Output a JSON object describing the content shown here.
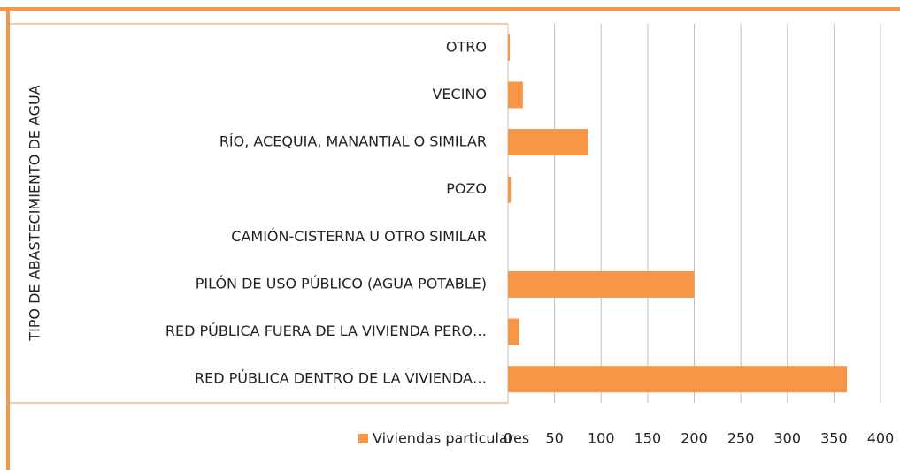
{
  "chart_data": {
    "type": "barh",
    "y_label": "TIPO DE ABASTECIMIENTO DE AGUA",
    "categories": [
      "OTRO",
      "VECINO",
      "RÍO, ACEQUIA, MANANTIAL O SIMILAR",
      "POZO",
      "CAMIÓN-CISTERNA U OTRO SIMILAR",
      "PILÓN DE USO PÚBLICO (AGUA POTABLE)",
      "RED PÚBLICA FUERA DE LA VIVIENDA PERO…",
      "RED PÚBLICA DENTRO DE LA VIVIENDA…"
    ],
    "series": [
      {
        "name": "Viviendas particulares",
        "color": "#f79646",
        "values": [
          2,
          16,
          86,
          3,
          0,
          200,
          12,
          364
        ]
      }
    ],
    "xlim": [
      0,
      400
    ],
    "xticks": [
      0,
      50,
      100,
      150,
      200,
      250,
      300,
      350,
      400
    ],
    "grid": true
  }
}
